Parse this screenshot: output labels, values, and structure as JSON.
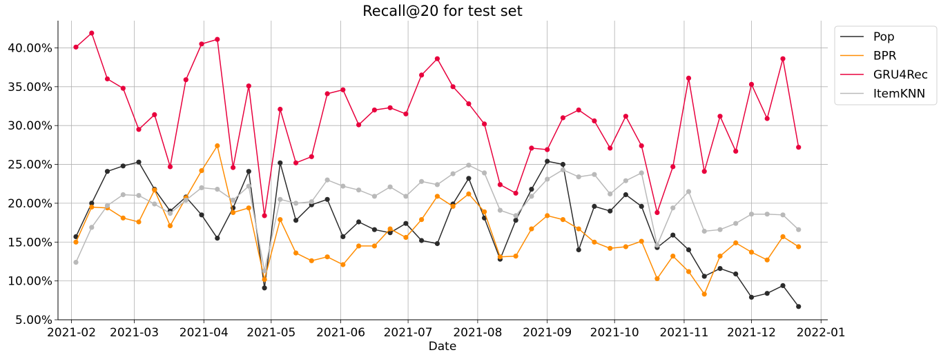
{
  "chart_data": {
    "type": "line",
    "title": "Recall@20 for test set",
    "xlabel": "Date",
    "ylabel": "",
    "x_ticks": [
      "2021-02",
      "2021-03",
      "2021-04",
      "2021-05",
      "2021-06",
      "2021-07",
      "2021-08",
      "2021-09",
      "2021-10",
      "2021-11",
      "2021-12",
      "2022-01"
    ],
    "y_ticks": [
      "5.00%",
      "10.00%",
      "15.00%",
      "20.00%",
      "25.00%",
      "30.00%",
      "35.00%",
      "40.00%"
    ],
    "ylim": [
      5.0,
      43.5
    ],
    "xlim": [
      "2021-01-26",
      "2022-01-04"
    ],
    "grid": true,
    "legend_position": "outside-top-right",
    "x": [
      "2021-02-03",
      "2021-02-10",
      "2021-02-17",
      "2021-02-24",
      "2021-03-03",
      "2021-03-10",
      "2021-03-17",
      "2021-03-24",
      "2021-03-31",
      "2021-04-07",
      "2021-04-14",
      "2021-04-21",
      "2021-04-28",
      "2021-05-05",
      "2021-05-12",
      "2021-05-19",
      "2021-05-26",
      "2021-06-02",
      "2021-06-09",
      "2021-06-16",
      "2021-06-23",
      "2021-06-30",
      "2021-07-07",
      "2021-07-14",
      "2021-07-21",
      "2021-07-28",
      "2021-08-04",
      "2021-08-11",
      "2021-08-18",
      "2021-08-25",
      "2021-09-01",
      "2021-09-08",
      "2021-09-15",
      "2021-09-22",
      "2021-09-29",
      "2021-10-06",
      "2021-10-13",
      "2021-10-20",
      "2021-10-27",
      "2021-11-03",
      "2021-11-10",
      "2021-11-17",
      "2021-11-24",
      "2021-12-01",
      "2021-12-08",
      "2021-12-15",
      "2021-12-22"
    ],
    "series": [
      {
        "name": "Pop",
        "color": "#2b2b2b",
        "values": [
          15.7,
          20.0,
          24.1,
          24.8,
          25.3,
          21.8,
          19.0,
          20.8,
          18.5,
          15.5,
          19.4,
          24.1,
          9.1,
          25.2,
          17.8,
          19.8,
          20.5,
          15.7,
          17.6,
          16.6,
          16.2,
          17.4,
          15.2,
          14.8,
          19.9,
          23.2,
          18.1,
          12.8,
          17.8,
          21.8,
          25.4,
          25.0,
          14.0,
          19.6,
          19.0,
          21.1,
          19.6,
          14.3,
          15.9,
          14.0,
          10.6,
          11.6,
          10.9,
          7.9,
          8.4,
          9.4,
          6.7
        ]
      },
      {
        "name": "BPR",
        "color": "#ff8c00",
        "values": [
          15.0,
          19.5,
          19.4,
          18.1,
          17.6,
          21.7,
          17.1,
          20.7,
          24.2,
          27.4,
          18.8,
          19.4,
          10.2,
          17.9,
          13.6,
          12.6,
          13.1,
          12.1,
          14.5,
          14.5,
          16.7,
          15.6,
          17.9,
          20.9,
          19.6,
          21.2,
          18.9,
          13.1,
          13.2,
          16.7,
          18.4,
          17.9,
          16.7,
          15.0,
          14.2,
          14.4,
          15.1,
          10.3,
          13.2,
          11.2,
          8.3,
          13.2,
          14.9,
          13.7,
          12.7,
          15.7,
          14.4
        ]
      },
      {
        "name": "GRU4Rec",
        "color": "#e8003d",
        "values": [
          40.1,
          41.9,
          36.0,
          34.8,
          29.5,
          31.4,
          24.7,
          35.9,
          40.5,
          41.1,
          24.6,
          35.1,
          18.4,
          32.1,
          25.2,
          26.0,
          34.1,
          34.6,
          30.1,
          32.0,
          32.3,
          31.5,
          36.5,
          38.6,
          35.0,
          32.8,
          30.2,
          22.4,
          21.3,
          27.1,
          26.9,
          31.0,
          32.0,
          30.6,
          27.1,
          31.2,
          27.4,
          18.8,
          24.7,
          36.1,
          24.1,
          31.2,
          26.7,
          35.3,
          30.9,
          38.6,
          27.2
        ]
      },
      {
        "name": "ItemKNN",
        "color": "#b9b9b9",
        "values": [
          12.4,
          16.9,
          19.7,
          21.1,
          21.0,
          19.9,
          18.7,
          20.4,
          22.0,
          21.8,
          20.4,
          22.2,
          11.3,
          20.5,
          20.0,
          20.2,
          23.0,
          22.2,
          21.7,
          20.9,
          22.1,
          20.9,
          22.8,
          22.4,
          23.8,
          24.9,
          23.9,
          19.1,
          18.4,
          20.9,
          23.1,
          24.3,
          23.4,
          23.7,
          21.2,
          22.9,
          23.9,
          14.6,
          19.4,
          21.5,
          16.4,
          16.6,
          17.4,
          18.6,
          18.6,
          18.5,
          16.6
        ]
      }
    ]
  }
}
